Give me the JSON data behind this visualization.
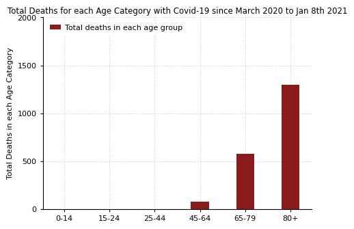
{
  "title": "Total Deaths for each Age Category with Covid-19 since March 2020 to Jan 8th 2021",
  "xlabel": "",
  "ylabel": "Total Deaths in each Age Category",
  "categories": [
    "0-14",
    "15-24",
    "25-44",
    "45-64",
    "65-79",
    "80+"
  ],
  "values": [
    0,
    0,
    0,
    75,
    580,
    1300
  ],
  "bar_color": "#8B1A1A",
  "ylim": [
    0,
    2000
  ],
  "yticks": [
    0,
    500,
    1000,
    1500,
    2000
  ],
  "legend_label": "Total deaths in each age group",
  "grid_color": "#d0d0d0",
  "title_fontsize": 8.5,
  "axis_label_fontsize": 8,
  "tick_fontsize": 8,
  "legend_fontsize": 8,
  "background_color": "#ffffff"
}
